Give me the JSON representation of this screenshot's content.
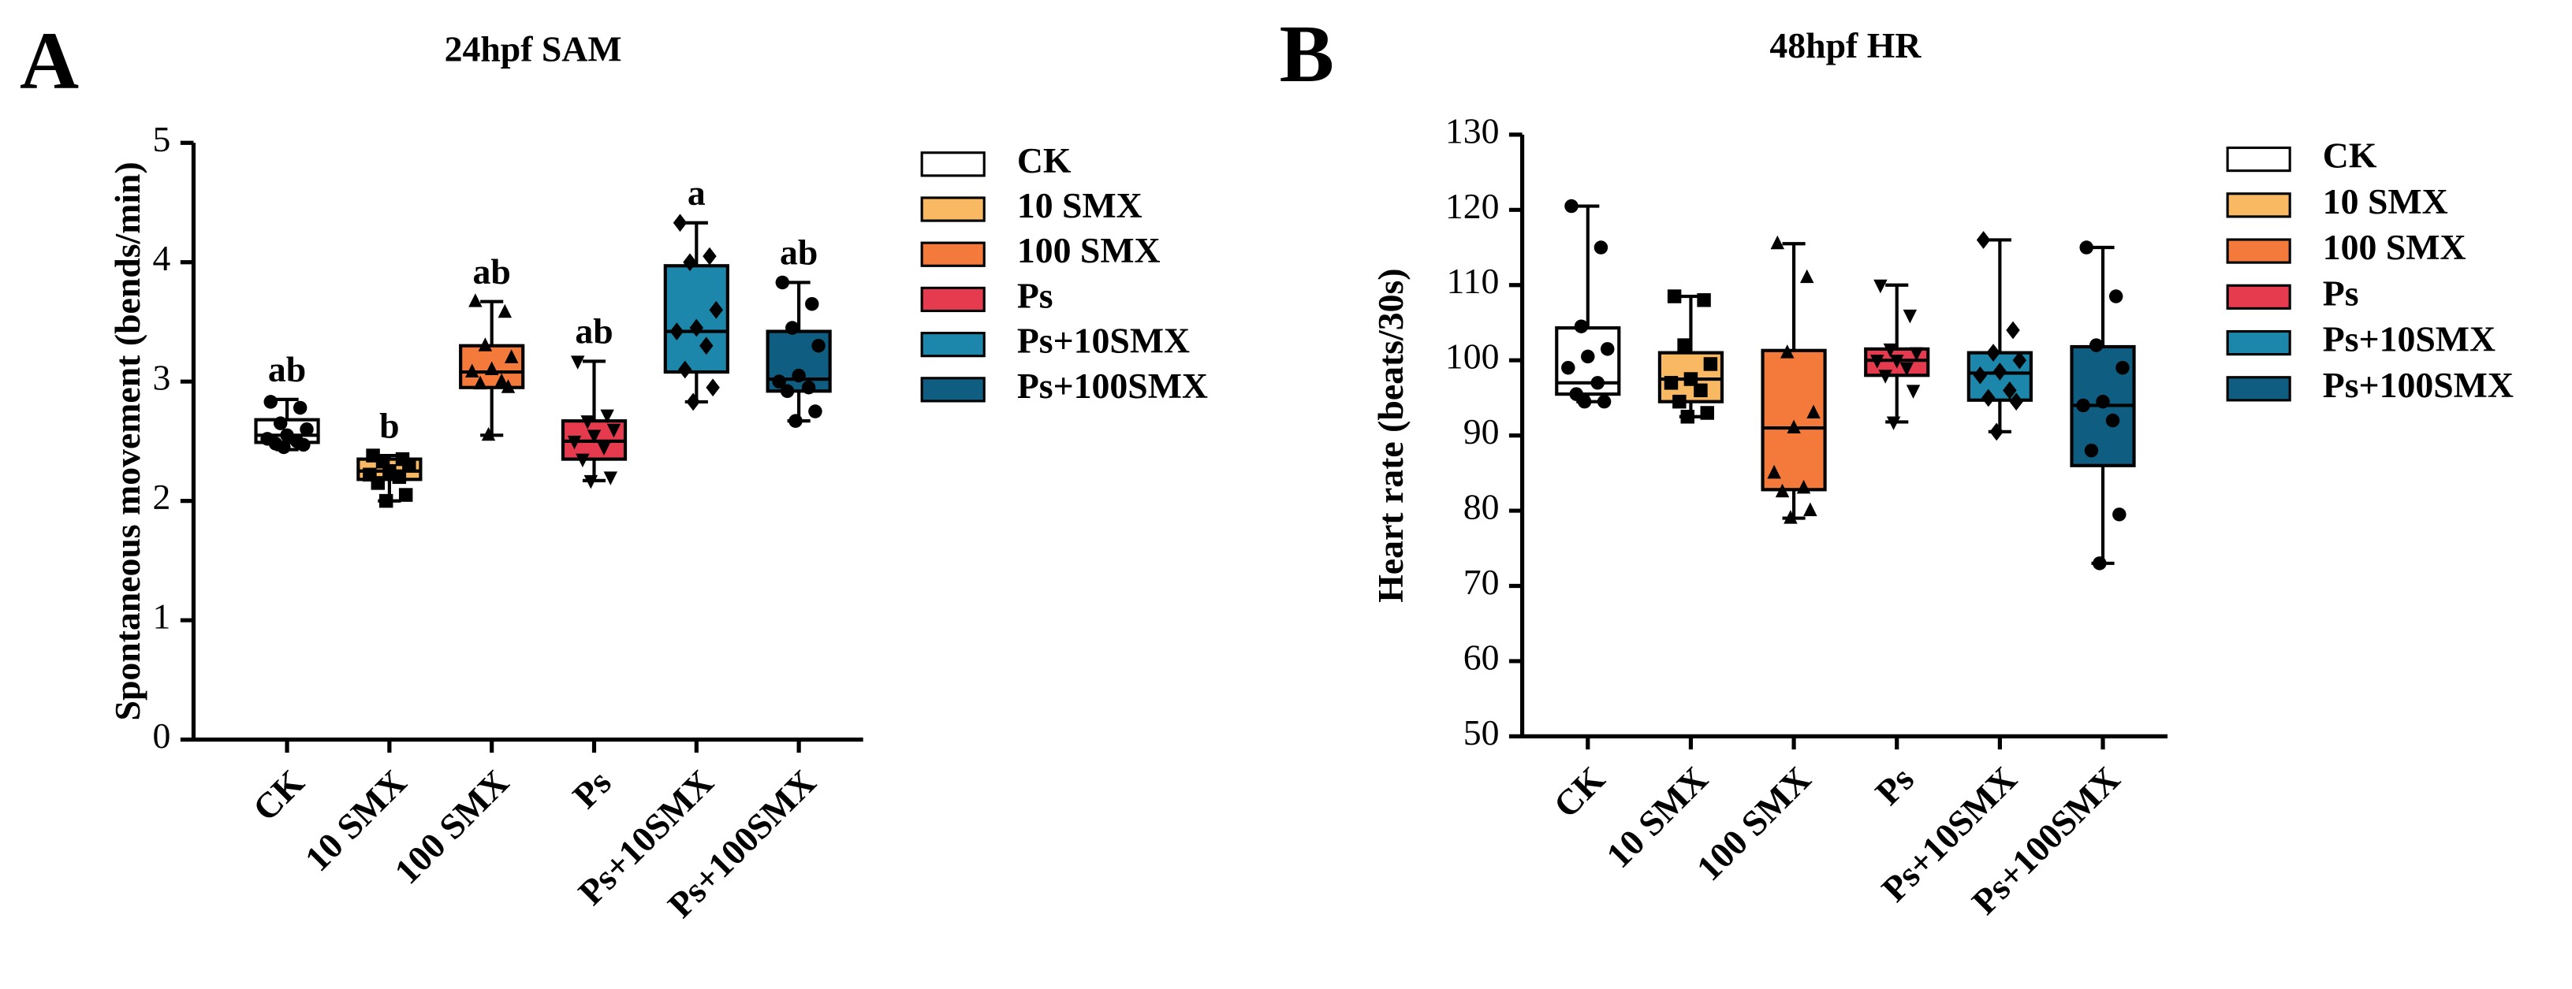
{
  "chart_data": [
    {
      "type": "box",
      "panel": "A",
      "title": "24hpf SAM",
      "y_label": "Spontaneous movement (bends/min)",
      "ylim": [
        0,
        5
      ],
      "yticks": [
        0,
        1,
        2,
        3,
        4,
        5
      ],
      "categories": [
        "CK",
        "10 SMX",
        "100 SMX",
        "Ps",
        "Ps+10SMX",
        "Ps+100SMX"
      ],
      "annotations": [
        "ab",
        "b",
        "ab",
        "ab",
        "a",
        "ab"
      ],
      "series": [
        {
          "name": "CK",
          "color": "#ffffff",
          "min": 2.43,
          "q1": 2.49,
          "median": 2.55,
          "q3": 2.68,
          "max": 2.85,
          "points": [
            2.83,
            2.78,
            2.65,
            2.6,
            2.55,
            2.52,
            2.5,
            2.48,
            2.47,
            2.45
          ]
        },
        {
          "name": "10 SMX",
          "color": "#f9b862",
          "min": 2.0,
          "q1": 2.18,
          "median": 2.25,
          "q3": 2.35,
          "max": 2.38,
          "points": [
            2.38,
            2.35,
            2.33,
            2.3,
            2.25,
            2.22,
            2.2,
            2.15,
            2.05,
            2.0
          ]
        },
        {
          "name": "100 SMX",
          "color": "#f47a3c",
          "min": 2.55,
          "q1": 2.95,
          "median": 3.08,
          "q3": 3.3,
          "max": 3.67,
          "points": [
            3.67,
            3.58,
            3.3,
            3.2,
            3.1,
            3.08,
            3.0,
            2.98,
            2.95,
            2.55
          ]
        },
        {
          "name": "Ps",
          "color": "#e63a4f",
          "min": 2.17,
          "q1": 2.35,
          "median": 2.5,
          "q3": 2.67,
          "max": 3.17,
          "points": [
            3.17,
            2.72,
            2.67,
            2.6,
            2.55,
            2.5,
            2.45,
            2.35,
            2.2,
            2.17
          ]
        },
        {
          "name": "Ps+10SMX",
          "color": "#1c87aa",
          "min": 2.83,
          "q1": 3.08,
          "median": 3.42,
          "q3": 3.97,
          "max": 4.33,
          "points": [
            4.33,
            4.05,
            4.0,
            3.6,
            3.45,
            3.42,
            3.3,
            3.1,
            2.95,
            2.83
          ]
        },
        {
          "name": "Ps+100SMX",
          "color": "#0f5e82",
          "min": 2.67,
          "q1": 2.92,
          "median": 3.02,
          "q3": 3.42,
          "max": 3.83,
          "points": [
            3.83,
            3.65,
            3.45,
            3.3,
            3.05,
            3.0,
            2.95,
            2.92,
            2.75,
            2.67
          ]
        }
      ]
    },
    {
      "type": "box",
      "panel": "B",
      "title": "48hpf HR",
      "y_label": "Heart rate (beats/30s)",
      "ylim": [
        50,
        130
      ],
      "yticks": [
        50,
        60,
        70,
        80,
        90,
        100,
        110,
        120,
        130
      ],
      "categories": [
        "CK",
        "10 SMX",
        "100 SMX",
        "Ps",
        "Ps+10SMX",
        "Ps+100SMX"
      ],
      "series": [
        {
          "name": "CK",
          "color": "#ffffff",
          "min": 94.5,
          "q1": 95.5,
          "median": 97,
          "q3": 104.3,
          "max": 120.5,
          "points": [
            120.5,
            115,
            104.5,
            101.5,
            100.5,
            99,
            97,
            95.5,
            94.5,
            94.5
          ]
        },
        {
          "name": "10 SMX",
          "color": "#f9b862",
          "min": 92.5,
          "q1": 94.5,
          "median": 97.5,
          "q3": 101,
          "max": 108.5,
          "points": [
            108.5,
            108,
            102,
            99.5,
            97.5,
            97,
            96,
            94.5,
            93,
            92.5
          ]
        },
        {
          "name": "100 SMX",
          "color": "#f47a3c",
          "min": 79,
          "q1": 82.8,
          "median": 91,
          "q3": 101.3,
          "max": 115.5,
          "points": [
            115.5,
            111,
            101,
            93,
            91,
            85,
            83,
            82.5,
            80,
            79
          ]
        },
        {
          "name": "Ps",
          "color": "#e63a4f",
          "min": 91.8,
          "q1": 98,
          "median": 100,
          "q3": 101.5,
          "max": 110,
          "points": [
            110,
            106,
            101.5,
            101,
            100,
            100,
            99,
            98,
            96,
            91.8
          ]
        },
        {
          "name": "Ps+10SMX",
          "color": "#1c87aa",
          "min": 90.5,
          "q1": 94.7,
          "median": 98.3,
          "q3": 101,
          "max": 116,
          "points": [
            116,
            104,
            101,
            100,
            98.5,
            98,
            96,
            95,
            94.5,
            90.5
          ]
        },
        {
          "name": "Ps+100SMX",
          "color": "#0f5e82",
          "min": 73,
          "q1": 86,
          "median": 94,
          "q3": 101.8,
          "max": 115,
          "points": [
            115,
            108.5,
            102,
            99,
            94.5,
            94,
            92,
            88,
            79.5,
            73
          ]
        }
      ]
    }
  ]
}
